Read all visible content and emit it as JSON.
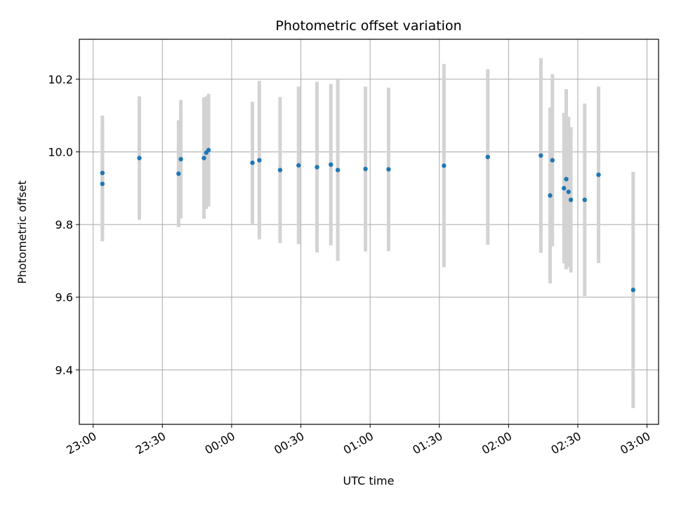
{
  "chart_data": {
    "type": "scatter",
    "title": "Photometric offset variation",
    "xlabel": "UTC time",
    "ylabel": "Photometric offset",
    "xlim": [
      "22:54",
      "03:05"
    ],
    "ylim": [
      9.25,
      10.31
    ],
    "grid": true,
    "x_ticks": [
      "23:00",
      "23:30",
      "00:00",
      "00:30",
      "01:00",
      "01:30",
      "02:00",
      "02:30",
      "03:00"
    ],
    "y_ticks": [
      9.4,
      9.6,
      9.8,
      10.0,
      10.2
    ],
    "y_tick_labels": [
      "9.4",
      "9.6",
      "9.8",
      "10.0",
      "10.2"
    ],
    "series": [
      {
        "marker_color": "#1f77b4",
        "errorbar_color": "#d3d3d3",
        "points": [
          {
            "x": "23:04",
            "y": 9.912,
            "yerr": 0.158
          },
          {
            "x": "23:04",
            "y": 9.942,
            "yerr": 0.158
          },
          {
            "x": "23:20",
            "y": 9.983,
            "yerr": 0.17
          },
          {
            "x": "23:37",
            "y": 9.94,
            "yerr": 0.147
          },
          {
            "x": "23:38",
            "y": 9.98,
            "yerr": 0.163
          },
          {
            "x": "23:48",
            "y": 9.983,
            "yerr": 0.167
          },
          {
            "x": "23:49",
            "y": 9.998,
            "yerr": 0.155
          },
          {
            "x": "23:50",
            "y": 10.005,
            "yerr": 0.155
          },
          {
            "x": "00:09",
            "y": 9.97,
            "yerr": 0.168
          },
          {
            "x": "00:12",
            "y": 9.977,
            "yerr": 0.218
          },
          {
            "x": "00:21",
            "y": 9.95,
            "yerr": 0.201
          },
          {
            "x": "00:29",
            "y": 9.963,
            "yerr": 0.217
          },
          {
            "x": "00:37",
            "y": 9.958,
            "yerr": 0.235
          },
          {
            "x": "00:43",
            "y": 9.965,
            "yerr": 0.222
          },
          {
            "x": "00:46",
            "y": 9.95,
            "yerr": 0.25
          },
          {
            "x": "00:58",
            "y": 9.953,
            "yerr": 0.227
          },
          {
            "x": "01:08",
            "y": 9.952,
            "yerr": 0.225
          },
          {
            "x": "01:32",
            "y": 9.962,
            "yerr": 0.28
          },
          {
            "x": "01:51",
            "y": 9.986,
            "yerr": 0.242
          },
          {
            "x": "02:14",
            "y": 9.99,
            "yerr": 0.268
          },
          {
            "x": "02:18",
            "y": 9.88,
            "yerr": 0.242
          },
          {
            "x": "02:19",
            "y": 9.977,
            "yerr": 0.237
          },
          {
            "x": "02:24",
            "y": 9.9,
            "yerr": 0.207
          },
          {
            "x": "02:25",
            "y": 9.925,
            "yerr": 0.248
          },
          {
            "x": "02:26",
            "y": 9.89,
            "yerr": 0.207
          },
          {
            "x": "02:27",
            "y": 9.868,
            "yerr": 0.2
          },
          {
            "x": "02:33",
            "y": 9.868,
            "yerr": 0.265
          },
          {
            "x": "02:39",
            "y": 9.937,
            "yerr": 0.243
          },
          {
            "x": "02:54",
            "y": 9.62,
            "yerr": 0.325
          }
        ]
      }
    ]
  }
}
